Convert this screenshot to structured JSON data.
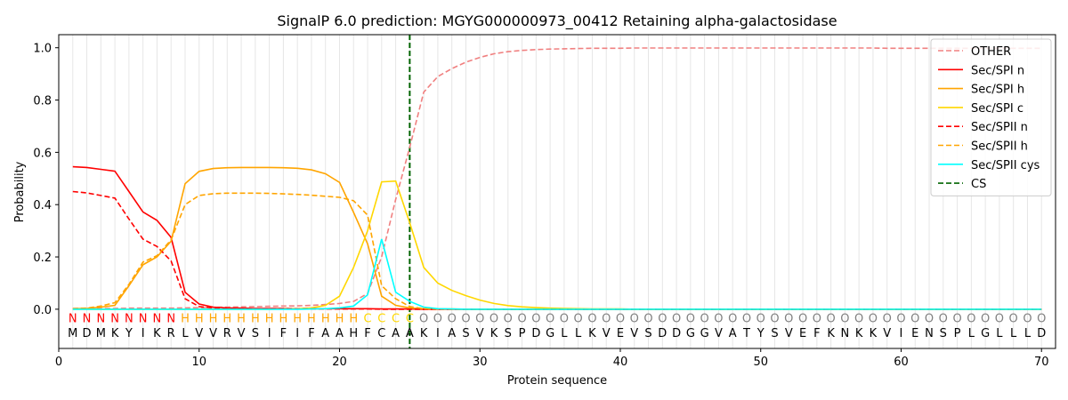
{
  "chart_data": {
    "type": "line",
    "title": "SignalP 6.0 prediction: MGYG000000973_00412 Retaining alpha-galactosidase",
    "xlabel": "Protein sequence",
    "ylabel": "Probability",
    "xlim": [
      0,
      71
    ],
    "ylim": [
      -0.15,
      1.05
    ],
    "x_ticks": [
      0,
      10,
      20,
      30,
      40,
      50,
      60,
      70
    ],
    "y_ticks": [
      0.0,
      0.2,
      0.4,
      0.6,
      0.8,
      1.0
    ],
    "x_tick_labels": [
      "0",
      "10",
      "20",
      "30",
      "40",
      "50",
      "60",
      "70"
    ],
    "y_tick_labels": [
      "0.0",
      "0.2",
      "0.4",
      "0.6",
      "0.8",
      "1.0"
    ],
    "legend_position": "top-right",
    "sequence": [
      "M",
      "D",
      "M",
      "K",
      "Y",
      "I",
      "K",
      "R",
      "L",
      "V",
      "V",
      "R",
      "V",
      "S",
      "I",
      "F",
      "I",
      "F",
      "A",
      "A",
      "H",
      "F",
      "C",
      "A",
      "A",
      "K",
      "I",
      "A",
      "S",
      "V",
      "K",
      "S",
      "P",
      "D",
      "G",
      "L",
      "L",
      "K",
      "V",
      "E",
      "V",
      "S",
      "D",
      "D",
      "G",
      "G",
      "V",
      "A",
      "T",
      "Y",
      "S",
      "V",
      "E",
      "F",
      "K",
      "N",
      "K",
      "K",
      "V",
      "I",
      "E",
      "N",
      "S",
      "P",
      "L",
      "G",
      "L",
      "L",
      "L",
      "D"
    ],
    "region_labels": [
      "N",
      "N",
      "N",
      "N",
      "N",
      "N",
      "N",
      "N",
      "H",
      "H",
      "H",
      "H",
      "H",
      "H",
      "H",
      "H",
      "H",
      "H",
      "H",
      "H",
      "H",
      "C",
      "C",
      "C",
      "C",
      "O",
      "O",
      "O",
      "O",
      "O",
      "O",
      "O",
      "O",
      "O",
      "O",
      "O",
      "O",
      "O",
      "O",
      "O",
      "O",
      "O",
      "O",
      "O",
      "O",
      "O",
      "O",
      "O",
      "O",
      "O",
      "O",
      "O",
      "O",
      "O",
      "O",
      "O",
      "O",
      "O",
      "O",
      "O",
      "O",
      "O",
      "O",
      "O",
      "O",
      "O",
      "O",
      "O",
      "O",
      "O"
    ],
    "region_colors": {
      "N": "#ff0000",
      "H": "#ffa500",
      "C": "#ffd700",
      "O": "#808080"
    },
    "cleavage_site": 25,
    "series": [
      {
        "name": "OTHER",
        "color": "#f08080",
        "dash": "dashed",
        "values": [
          0.003,
          0.003,
          0.003,
          0.003,
          0.004,
          0.004,
          0.004,
          0.004,
          0.005,
          0.006,
          0.007,
          0.008,
          0.009,
          0.01,
          0.011,
          0.012,
          0.013,
          0.015,
          0.018,
          0.022,
          0.03,
          0.06,
          0.2,
          0.42,
          0.62,
          0.83,
          0.89,
          0.92,
          0.945,
          0.963,
          0.977,
          0.985,
          0.99,
          0.993,
          0.995,
          0.996,
          0.997,
          0.998,
          0.998,
          0.998,
          0.999,
          0.999,
          0.999,
          0.999,
          0.999,
          0.999,
          0.999,
          0.999,
          0.999,
          0.999,
          0.999,
          0.999,
          0.999,
          0.999,
          0.999,
          0.999,
          0.999,
          0.999,
          0.998,
          0.998,
          0.998,
          0.998,
          0.998,
          0.998,
          0.998,
          0.998,
          0.998,
          0.998,
          0.998,
          0.998
        ]
      },
      {
        "name": "Sec/SPI n",
        "color": "#ff0000",
        "dash": "solid",
        "values": [
          0.545,
          0.542,
          0.535,
          0.528,
          0.45,
          0.372,
          0.34,
          0.275,
          0.065,
          0.02,
          0.008,
          0.005,
          0.004,
          0.003,
          0.003,
          0.003,
          0.002,
          0.002,
          0.002,
          0.002,
          0.002,
          0.002,
          0.001,
          0.001,
          0.001,
          0.0,
          0.0,
          0.0,
          0.0,
          0.0,
          0.0,
          0.0,
          0.0,
          0.0,
          0.0,
          0.0,
          0.0,
          0.0,
          0.0,
          0.0,
          0.0,
          0.0,
          0.0,
          0.0,
          0.0,
          0.0,
          0.0,
          0.0,
          0.0,
          0.0,
          0.0,
          0.0,
          0.0,
          0.0,
          0.0,
          0.0,
          0.0,
          0.0,
          0.0,
          0.0,
          0.0,
          0.0,
          0.0,
          0.0,
          0.0,
          0.0,
          0.0,
          0.0,
          0.0,
          0.0
        ]
      },
      {
        "name": "Sec/SPI h",
        "color": "#ffa500",
        "dash": "solid",
        "values": [
          0.002,
          0.003,
          0.008,
          0.015,
          0.09,
          0.17,
          0.2,
          0.26,
          0.48,
          0.527,
          0.538,
          0.541,
          0.542,
          0.542,
          0.542,
          0.541,
          0.539,
          0.533,
          0.518,
          0.485,
          0.37,
          0.25,
          0.05,
          0.015,
          0.005,
          0.002,
          0.001,
          0.001,
          0.0,
          0.0,
          0.0,
          0.0,
          0.0,
          0.0,
          0.0,
          0.0,
          0.0,
          0.0,
          0.0,
          0.0,
          0.0,
          0.0,
          0.0,
          0.0,
          0.0,
          0.0,
          0.0,
          0.0,
          0.0,
          0.0,
          0.0,
          0.0,
          0.0,
          0.0,
          0.0,
          0.0,
          0.0,
          0.0,
          0.0,
          0.0,
          0.0,
          0.0,
          0.0,
          0.0,
          0.0,
          0.0,
          0.0,
          0.0,
          0.0,
          0.0
        ]
      },
      {
        "name": "Sec/SPI c",
        "color": "#ffd700",
        "dash": "solid",
        "values": [
          0.0,
          0.0,
          0.0,
          0.0,
          0.0,
          0.0,
          0.0,
          0.0,
          0.0,
          0.0,
          0.0,
          0.0,
          0.0,
          0.0,
          0.0,
          0.001,
          0.002,
          0.005,
          0.015,
          0.05,
          0.16,
          0.3,
          0.487,
          0.49,
          0.33,
          0.16,
          0.1,
          0.072,
          0.052,
          0.035,
          0.022,
          0.014,
          0.009,
          0.006,
          0.004,
          0.003,
          0.002,
          0.001,
          0.001,
          0.001,
          0.0,
          0.0,
          0.0,
          0.0,
          0.0,
          0.0,
          0.0,
          0.0,
          0.0,
          0.0,
          0.0,
          0.0,
          0.0,
          0.0,
          0.0,
          0.0,
          0.0,
          0.0,
          0.0,
          0.0,
          0.0,
          0.0,
          0.0,
          0.0,
          0.0,
          0.0,
          0.0,
          0.0,
          0.0,
          0.0
        ]
      },
      {
        "name": "Sec/SPII n",
        "color": "#ff0000",
        "dash": "dashed",
        "values": [
          0.45,
          0.445,
          0.435,
          0.425,
          0.345,
          0.268,
          0.24,
          0.185,
          0.04,
          0.01,
          0.005,
          0.003,
          0.002,
          0.002,
          0.002,
          0.002,
          0.001,
          0.001,
          0.001,
          0.001,
          0.001,
          0.001,
          0.0,
          0.0,
          0.0,
          0.0,
          0.0,
          0.0,
          0.0,
          0.0,
          0.0,
          0.0,
          0.0,
          0.0,
          0.0,
          0.0,
          0.0,
          0.0,
          0.0,
          0.0,
          0.0,
          0.0,
          0.0,
          0.0,
          0.0,
          0.0,
          0.0,
          0.0,
          0.0,
          0.0,
          0.0,
          0.0,
          0.0,
          0.0,
          0.0,
          0.0,
          0.0,
          0.0,
          0.0,
          0.0,
          0.0,
          0.0,
          0.0,
          0.0,
          0.0,
          0.0,
          0.0,
          0.0,
          0.0,
          0.0
        ]
      },
      {
        "name": "Sec/SPII h",
        "color": "#ffa500",
        "dash": "dashed",
        "values": [
          0.002,
          0.004,
          0.012,
          0.025,
          0.095,
          0.18,
          0.205,
          0.265,
          0.4,
          0.435,
          0.442,
          0.444,
          0.444,
          0.444,
          0.443,
          0.441,
          0.439,
          0.436,
          0.432,
          0.428,
          0.415,
          0.36,
          0.09,
          0.04,
          0.01,
          0.002,
          0.001,
          0.0,
          0.0,
          0.0,
          0.0,
          0.0,
          0.0,
          0.0,
          0.0,
          0.0,
          0.0,
          0.0,
          0.0,
          0.0,
          0.0,
          0.0,
          0.0,
          0.0,
          0.0,
          0.0,
          0.0,
          0.0,
          0.0,
          0.0,
          0.0,
          0.0,
          0.0,
          0.0,
          0.0,
          0.0,
          0.0,
          0.0,
          0.0,
          0.0,
          0.0,
          0.0,
          0.0,
          0.0,
          0.0,
          0.0,
          0.0,
          0.0,
          0.0,
          0.0
        ]
      },
      {
        "name": "Sec/SPII cys",
        "color": "#00ffff",
        "dash": "solid",
        "values": [
          0.0,
          0.0,
          0.0,
          0.0,
          0.0,
          0.0,
          0.0,
          0.0,
          0.0,
          0.0,
          0.0,
          0.0,
          0.0,
          0.0,
          0.0,
          0.0,
          0.0,
          0.001,
          0.002,
          0.005,
          0.012,
          0.055,
          0.268,
          0.065,
          0.03,
          0.008,
          0.002,
          0.001,
          0.0,
          0.0,
          0.0,
          0.0,
          0.0,
          0.0,
          0.0,
          0.0,
          0.0,
          0.0,
          0.0,
          0.0,
          0.0,
          0.0,
          0.0,
          0.0,
          0.0,
          0.0,
          0.0,
          0.0,
          0.0,
          0.0,
          0.0,
          0.0,
          0.0,
          0.0,
          0.0,
          0.0,
          0.0,
          0.0,
          0.0,
          0.0,
          0.0,
          0.0,
          0.0,
          0.0,
          0.0,
          0.0,
          0.0,
          0.0,
          0.0,
          0.0
        ]
      }
    ],
    "cs_legend": {
      "name": "CS",
      "color": "#006400",
      "dash": "dashed"
    }
  }
}
